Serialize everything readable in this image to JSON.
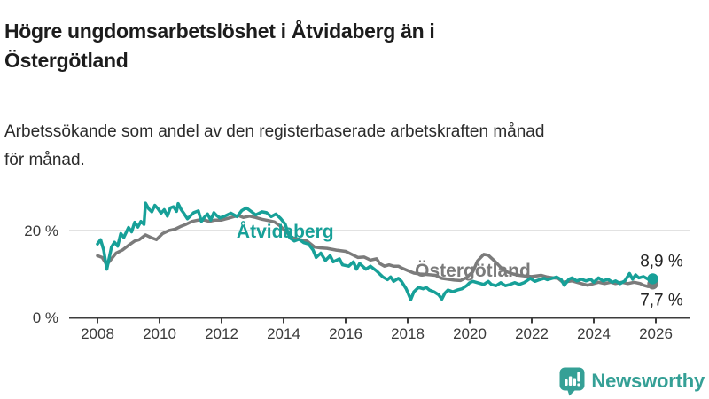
{
  "header": {
    "title_lines": [
      "Högre ungdomsarbetslöshet i Åtvidaberg än i",
      "Östergötland"
    ],
    "subtitle_lines": [
      "Arbetssökande som andel av den registerbaserade arbetskraften månad",
      "för månad."
    ]
  },
  "colors": {
    "accent_teal": "#17a098",
    "series_gray": "#7b7b7b",
    "brand_teal": "#35a096",
    "axis": "#3c3c3c",
    "grid": "#d9d9d9",
    "end_label_text": "#222222"
  },
  "footer": {
    "brand_name": "Newsworthy",
    "logo_icon": "newsworthy-speech-bubble-barchart-icon"
  },
  "chart_data": {
    "type": "line",
    "title": "Högre ungdomsarbetslöshet i Åtvidaberg än i Östergötland",
    "subtitle": "Arbetssökande som andel av den registerbaserade arbetskraften månad för månad.",
    "legend": "inline-labels",
    "grid": "y-at-20-only",
    "xlim": [
      2008,
      2026.3
    ],
    "ylim": [
      0,
      28
    ],
    "x_ticks": [
      2008,
      2010,
      2012,
      2014,
      2016,
      2018,
      2020,
      2022,
      2024,
      2026
    ],
    "y_axis": {
      "ticks": [
        {
          "value": 0,
          "label": "0 %"
        },
        {
          "value": 20,
          "label": "20 %"
        }
      ],
      "grid_values": [
        20
      ]
    },
    "series": [
      {
        "id": "ostergotland",
        "name": "Östergötland",
        "color": "#7b7b7b",
        "end_value": 7.7,
        "end_label": "7,7 %",
        "label_pos": {
          "x": 2020.1,
          "y": 10.8
        },
        "end_label_offset": {
          "dx": 10,
          "dy": 24
        },
        "points": [
          [
            2008.0,
            14.2
          ],
          [
            2008.15,
            13.8
          ],
          [
            2008.3,
            12.1
          ],
          [
            2008.45,
            13.5
          ],
          [
            2008.6,
            14.8
          ],
          [
            2008.8,
            15.5
          ],
          [
            2009.0,
            16.6
          ],
          [
            2009.2,
            17.6
          ],
          [
            2009.35,
            17.9
          ],
          [
            2009.55,
            19.0
          ],
          [
            2009.75,
            18.3
          ],
          [
            2009.9,
            17.9
          ],
          [
            2010.1,
            19.3
          ],
          [
            2010.3,
            20.0
          ],
          [
            2010.5,
            20.3
          ],
          [
            2010.7,
            21.0
          ],
          [
            2010.85,
            21.4
          ],
          [
            2011.05,
            22.1
          ],
          [
            2011.25,
            22.4
          ],
          [
            2011.45,
            22.4
          ],
          [
            2011.6,
            22.1
          ],
          [
            2011.8,
            22.4
          ],
          [
            2012.0,
            22.4
          ],
          [
            2012.2,
            22.8
          ],
          [
            2012.4,
            23.2
          ],
          [
            2012.55,
            23.4
          ],
          [
            2012.7,
            23.0
          ],
          [
            2012.9,
            23.3
          ],
          [
            2013.1,
            23.0
          ],
          [
            2013.3,
            22.6
          ],
          [
            2013.5,
            22.3
          ],
          [
            2013.7,
            22.0
          ],
          [
            2013.9,
            21.0
          ],
          [
            2014.1,
            19.5
          ],
          [
            2014.3,
            18.3
          ],
          [
            2014.55,
            17.9
          ],
          [
            2014.75,
            17.6
          ],
          [
            2015.0,
            16.2
          ],
          [
            2015.2,
            16.0
          ],
          [
            2015.4,
            15.9
          ],
          [
            2015.7,
            15.5
          ],
          [
            2016.0,
            15.2
          ],
          [
            2016.2,
            14.5
          ],
          [
            2016.4,
            13.8
          ],
          [
            2016.6,
            13.9
          ],
          [
            2016.8,
            13.2
          ],
          [
            2017.0,
            13.5
          ],
          [
            2017.1,
            12.4
          ],
          [
            2017.25,
            11.8
          ],
          [
            2017.4,
            12.1
          ],
          [
            2017.55,
            11.8
          ],
          [
            2017.7,
            11.8
          ],
          [
            2017.8,
            11.4
          ],
          [
            2018.0,
            10.8
          ],
          [
            2018.2,
            10.2
          ],
          [
            2018.4,
            10.0
          ],
          [
            2018.6,
            9.9
          ],
          [
            2018.9,
            9.7
          ],
          [
            2019.1,
            9.0
          ],
          [
            2019.3,
            8.8
          ],
          [
            2019.5,
            8.6
          ],
          [
            2019.7,
            8.5
          ],
          [
            2019.9,
            9.2
          ],
          [
            2020.1,
            10.5
          ],
          [
            2020.25,
            13.0
          ],
          [
            2020.45,
            14.5
          ],
          [
            2020.6,
            14.3
          ],
          [
            2020.8,
            13.0
          ],
          [
            2021.0,
            11.5
          ],
          [
            2021.2,
            10.5
          ],
          [
            2021.4,
            10.0
          ],
          [
            2021.6,
            9.7
          ],
          [
            2021.8,
            9.5
          ],
          [
            2022.0,
            9.4
          ],
          [
            2022.3,
            9.7
          ],
          [
            2022.5,
            9.3
          ],
          [
            2022.7,
            9.1
          ],
          [
            2022.85,
            9.0
          ],
          [
            2023.0,
            8.1
          ],
          [
            2023.3,
            8.4
          ],
          [
            2023.6,
            7.8
          ],
          [
            2023.8,
            7.4
          ],
          [
            2024.0,
            7.8
          ],
          [
            2024.15,
            8.1
          ],
          [
            2024.35,
            7.8
          ],
          [
            2024.55,
            8.1
          ],
          [
            2024.7,
            7.8
          ],
          [
            2024.9,
            8.1
          ],
          [
            2025.1,
            7.8
          ],
          [
            2025.3,
            8.1
          ],
          [
            2025.5,
            7.8
          ],
          [
            2025.6,
            7.4
          ],
          [
            2025.75,
            7.1
          ],
          [
            2025.9,
            7.7
          ]
        ]
      },
      {
        "id": "atvidaberg",
        "name": "Åtvidaberg",
        "color": "#17a098",
        "end_value": 8.9,
        "end_label": "8,9 %",
        "label_pos": {
          "x": 2014.05,
          "y": 19.8
        },
        "end_label_offset": {
          "dx": 10,
          "dy": -14
        },
        "points": [
          [
            2008.0,
            16.9
          ],
          [
            2008.1,
            17.9
          ],
          [
            2008.2,
            15.5
          ],
          [
            2008.3,
            11.1
          ],
          [
            2008.45,
            16.2
          ],
          [
            2008.55,
            17.3
          ],
          [
            2008.65,
            16.4
          ],
          [
            2008.75,
            19.3
          ],
          [
            2008.85,
            18.4
          ],
          [
            2009.0,
            20.7
          ],
          [
            2009.1,
            19.7
          ],
          [
            2009.2,
            21.9
          ],
          [
            2009.3,
            20.8
          ],
          [
            2009.4,
            22.1
          ],
          [
            2009.5,
            21.4
          ],
          [
            2009.55,
            26.3
          ],
          [
            2009.65,
            25.0
          ],
          [
            2009.75,
            24.3
          ],
          [
            2009.85,
            25.8
          ],
          [
            2009.95,
            25.0
          ],
          [
            2010.05,
            24.0
          ],
          [
            2010.15,
            24.8
          ],
          [
            2010.25,
            23.3
          ],
          [
            2010.35,
            25.2
          ],
          [
            2010.45,
            25.5
          ],
          [
            2010.55,
            24.4
          ],
          [
            2010.6,
            26.2
          ],
          [
            2010.7,
            24.8
          ],
          [
            2010.8,
            23.8
          ],
          [
            2010.9,
            22.7
          ],
          [
            2011.0,
            23.4
          ],
          [
            2011.1,
            24.1
          ],
          [
            2011.25,
            24.5
          ],
          [
            2011.35,
            22.1
          ],
          [
            2011.45,
            23.1
          ],
          [
            2011.55,
            23.8
          ],
          [
            2011.65,
            22.4
          ],
          [
            2011.75,
            24.1
          ],
          [
            2011.85,
            23.4
          ],
          [
            2011.95,
            22.9
          ],
          [
            2012.1,
            23.3
          ],
          [
            2012.3,
            24.0
          ],
          [
            2012.5,
            23.2
          ],
          [
            2012.65,
            24.6
          ],
          [
            2012.8,
            25.2
          ],
          [
            2012.95,
            24.4
          ],
          [
            2013.1,
            23.6
          ],
          [
            2013.3,
            24.3
          ],
          [
            2013.45,
            24.1
          ],
          [
            2013.6,
            23.2
          ],
          [
            2013.75,
            23.8
          ],
          [
            2013.9,
            22.8
          ],
          [
            2014.05,
            21.5
          ],
          [
            2014.2,
            18.3
          ],
          [
            2014.35,
            17.6
          ],
          [
            2014.5,
            18.0
          ],
          [
            2014.65,
            17.2
          ],
          [
            2014.8,
            16.9
          ],
          [
            2014.95,
            15.5
          ],
          [
            2015.05,
            13.8
          ],
          [
            2015.2,
            14.8
          ],
          [
            2015.35,
            13.1
          ],
          [
            2015.5,
            14.2
          ],
          [
            2015.6,
            12.8
          ],
          [
            2015.8,
            13.5
          ],
          [
            2015.9,
            12.1
          ],
          [
            2016.1,
            11.8
          ],
          [
            2016.25,
            12.8
          ],
          [
            2016.35,
            11.1
          ],
          [
            2016.45,
            12.4
          ],
          [
            2016.65,
            11.1
          ],
          [
            2016.8,
            11.8
          ],
          [
            2017.0,
            10.7
          ],
          [
            2017.2,
            9.3
          ],
          [
            2017.35,
            8.7
          ],
          [
            2017.45,
            9.3
          ],
          [
            2017.55,
            8.3
          ],
          [
            2017.7,
            9.0
          ],
          [
            2017.8,
            8.3
          ],
          [
            2017.95,
            6.6
          ],
          [
            2018.1,
            4.1
          ],
          [
            2018.2,
            5.9
          ],
          [
            2018.35,
            6.9
          ],
          [
            2018.5,
            6.6
          ],
          [
            2018.6,
            6.9
          ],
          [
            2018.7,
            6.3
          ],
          [
            2018.85,
            5.9
          ],
          [
            2019.0,
            5.2
          ],
          [
            2019.1,
            4.2
          ],
          [
            2019.2,
            5.6
          ],
          [
            2019.3,
            6.3
          ],
          [
            2019.45,
            5.9
          ],
          [
            2019.6,
            6.3
          ],
          [
            2019.75,
            6.6
          ],
          [
            2019.9,
            7.3
          ],
          [
            2020.0,
            8.0
          ],
          [
            2020.1,
            8.3
          ],
          [
            2020.25,
            8.0
          ],
          [
            2020.45,
            7.6
          ],
          [
            2020.6,
            8.3
          ],
          [
            2020.7,
            7.6
          ],
          [
            2020.85,
            7.3
          ],
          [
            2021.0,
            8.0
          ],
          [
            2021.15,
            7.3
          ],
          [
            2021.3,
            7.6
          ],
          [
            2021.45,
            8.0
          ],
          [
            2021.6,
            7.6
          ],
          [
            2021.75,
            8.0
          ],
          [
            2021.95,
            9.0
          ],
          [
            2022.1,
            8.3
          ],
          [
            2022.25,
            8.7
          ],
          [
            2022.4,
            9.0
          ],
          [
            2022.5,
            8.7
          ],
          [
            2022.65,
            9.0
          ],
          [
            2022.8,
            9.3
          ],
          [
            2022.95,
            8.7
          ],
          [
            2023.05,
            7.4
          ],
          [
            2023.2,
            8.8
          ],
          [
            2023.3,
            9.1
          ],
          [
            2023.45,
            8.4
          ],
          [
            2023.6,
            8.8
          ],
          [
            2023.75,
            8.4
          ],
          [
            2023.9,
            8.8
          ],
          [
            2024.0,
            8.1
          ],
          [
            2024.15,
            9.1
          ],
          [
            2024.3,
            8.4
          ],
          [
            2024.45,
            8.8
          ],
          [
            2024.6,
            8.1
          ],
          [
            2024.7,
            8.4
          ],
          [
            2024.85,
            7.8
          ],
          [
            2025.0,
            8.4
          ],
          [
            2025.15,
            10.1
          ],
          [
            2025.25,
            8.8
          ],
          [
            2025.35,
            9.8
          ],
          [
            2025.45,
            9.1
          ],
          [
            2025.6,
            9.4
          ],
          [
            2025.75,
            8.8
          ],
          [
            2025.9,
            8.9
          ]
        ]
      }
    ]
  }
}
